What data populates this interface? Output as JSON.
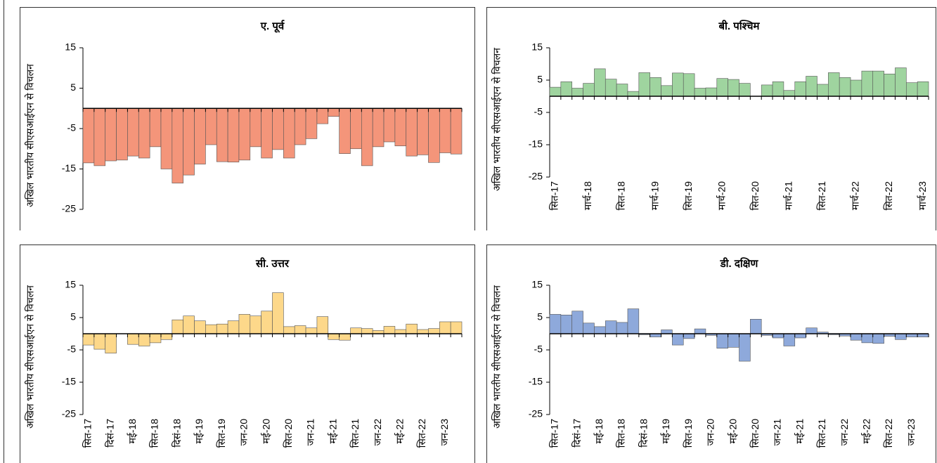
{
  "chart_data": [
    {
      "type": "bar",
      "title": "ए. पूर्व",
      "y_label": "अखिल भारतीय सीएसआईएन से विचलन",
      "color": "#f4957a",
      "values": [
        -13.5,
        -14.2,
        -13,
        -12.8,
        -11.8,
        -12.3,
        -9.5,
        -15,
        -18.5,
        -16.5,
        -13.8,
        -9,
        -13.2,
        -13.3,
        -12.8,
        -9.5,
        -12.3,
        -10.2,
        -12.3,
        -9,
        -7.5,
        -3.8,
        -2,
        -11.2,
        -10,
        -14.2,
        -9.5,
        -8.3,
        -9.3,
        -11.8,
        -11.5,
        -13.4,
        -11,
        -11.3
      ],
      "ylim": [
        -25,
        15
      ],
      "yticks": [
        -25,
        -15,
        -5,
        5,
        15
      ]
    },
    {
      "type": "bar",
      "title": "बी. पश्चिम",
      "y_label": "अखिल भारतीय सीएसआईएन से विचलन",
      "color": "#9fd49f",
      "categories": [
        "सित-17",
        null,
        null,
        "मार्च-18",
        null,
        null,
        "सित-18",
        null,
        null,
        "मार्च-19",
        null,
        null,
        "सित-19",
        null,
        null,
        "मार्च-20",
        null,
        null,
        "सित-20",
        null,
        null,
        "मार्च-21",
        null,
        null,
        "सित-21",
        null,
        null,
        "मार्च-22",
        null,
        null,
        "सित-22",
        null,
        null,
        "मार्च-23"
      ],
      "values": [
        2.8,
        4.5,
        2.5,
        4,
        8.5,
        5.3,
        3.8,
        1.5,
        7.3,
        5.8,
        3.3,
        7.2,
        7,
        2.5,
        2.6,
        5.5,
        5.2,
        4,
        0,
        3.5,
        4.5,
        1.8,
        4.5,
        6.2,
        3.7,
        7.3,
        5.8,
        5,
        7.8,
        7.8,
        6.9,
        8.8,
        4.2,
        4.5
      ],
      "ylim": [
        -25,
        15
      ],
      "yticks": [
        -25,
        -15,
        -5,
        5,
        15
      ]
    },
    {
      "type": "bar",
      "title": "सी. उत्तर",
      "y_label": "अखिल भारतीय सीएसआईएन से विचलन",
      "color": "#fdd88a",
      "categories": [
        "सित-17",
        null,
        "दिसं-17",
        null,
        "मई-18",
        null,
        "सित-18",
        null,
        "दिसं-18",
        null,
        "मई-19",
        null,
        "सित-19",
        null,
        "जन-20",
        null,
        "मई-20",
        null,
        "सित-20",
        null,
        "जन-21",
        null,
        "मई-21",
        null,
        "सित-21",
        null,
        "जन-22",
        null,
        "मई-22",
        null,
        "सित-22",
        null,
        "जन-23",
        null
      ],
      "values": [
        -3.5,
        -4.8,
        -6,
        0,
        -3.3,
        -3.8,
        -2.8,
        -1.8,
        4.3,
        5.5,
        4,
        2.8,
        3,
        4,
        6,
        5.5,
        7,
        12.7,
        2.2,
        2.5,
        1.8,
        5.3,
        -1.8,
        -2,
        1.8,
        1.6,
        1,
        2.3,
        1.3,
        3,
        1.3,
        1.6,
        3.7,
        3.7
      ],
      "ylim": [
        -25,
        15
      ],
      "yticks": [
        -25,
        -15,
        -5,
        5,
        15
      ]
    },
    {
      "type": "bar",
      "title": "डी. दक्षिण",
      "y_label": "अखिल भारतीय सीएसआईएन से विचलन",
      "color": "#8ea9db",
      "categories": [
        "सित-17",
        null,
        "दिसं-17",
        null,
        "मई-18",
        null,
        "सित-18",
        null,
        "दिसं-18",
        null,
        "मई-19",
        null,
        "सित-19",
        null,
        "जन-20",
        null,
        "मई-20",
        null,
        "सित-20",
        null,
        "जन-21",
        null,
        "मई-21",
        null,
        "सित-21",
        null,
        "जन-22",
        null,
        "मई-22",
        null,
        "सित-22",
        null,
        "जन-23",
        null
      ],
      "values": [
        6,
        5.8,
        7,
        3.3,
        2.2,
        4,
        3.5,
        7.7,
        -0.3,
        -1,
        1.2,
        -3.5,
        -1.5,
        1.5,
        -0.5,
        -4.5,
        -4.2,
        -8.5,
        4.5,
        -0.5,
        -1.3,
        -3.8,
        -1.3,
        1.8,
        0.5,
        -0.3,
        -0.7,
        -2,
        -2.8,
        -3,
        -0.8,
        -1.8,
        -1,
        -1
      ],
      "ylim": [
        -25,
        15
      ],
      "yticks": [
        -25,
        -15,
        -5,
        5,
        15
      ]
    }
  ]
}
